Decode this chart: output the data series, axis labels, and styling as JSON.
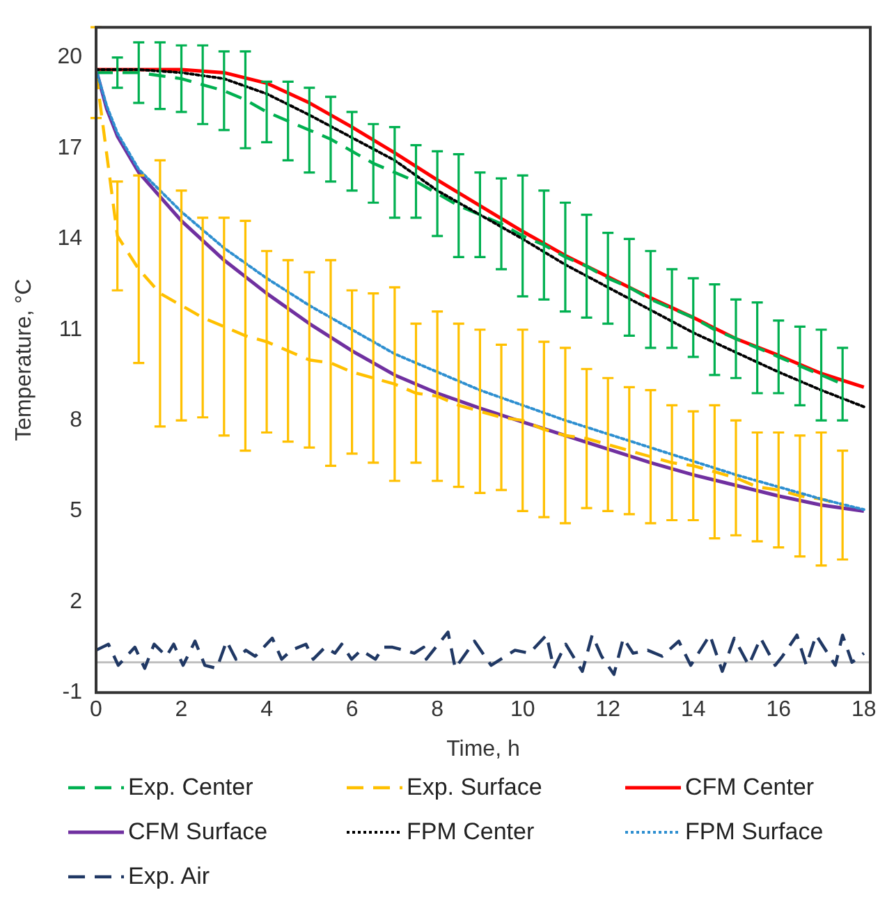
{
  "chart_data": {
    "type": "line",
    "xlabel": "Time, h",
    "ylabel": "Temperature, °C",
    "xlim": [
      0,
      18.15
    ],
    "xticks": [
      0,
      2,
      4,
      6,
      8,
      10,
      12,
      14,
      16,
      18
    ],
    "ylim": [
      -1,
      21
    ],
    "yticks": [
      -1,
      2,
      5,
      8,
      11,
      14,
      17,
      20
    ],
    "legend": "bottom",
    "marker": "none",
    "ref_lines": [
      {
        "axis": "y",
        "value": 0,
        "color": "#bfbfbf"
      }
    ],
    "series": [
      {
        "name": "Exp. Center",
        "color": "#00b050",
        "line_style": "dashed",
        "x": [
          0,
          0.5,
          1,
          1.5,
          2,
          2.5,
          3,
          3.5,
          4,
          4.5,
          5,
          5.5,
          6,
          6.5,
          7,
          7.5,
          8,
          8.5,
          9,
          9.5,
          10,
          10.5,
          11,
          11.5,
          12,
          12.5,
          13,
          13.5,
          14,
          14.5,
          15,
          15.5,
          16,
          16.5,
          17,
          17.5
        ],
        "values": [
          19.5,
          19.5,
          19.5,
          19.4,
          19.3,
          19.1,
          18.9,
          18.6,
          18.2,
          17.9,
          17.6,
          17.3,
          16.9,
          16.5,
          16.2,
          15.9,
          15.5,
          15.1,
          14.8,
          14.5,
          14.1,
          13.8,
          13.4,
          13.1,
          12.7,
          12.4,
          12.0,
          11.7,
          11.4,
          11.0,
          10.7,
          10.4,
          10.1,
          9.8,
          9.5,
          9.2
        ],
        "errors": [
          null,
          0.5,
          1.0,
          1.1,
          1.1,
          1.3,
          1.3,
          1.6,
          1.0,
          1.3,
          1.4,
          1.4,
          1.3,
          1.3,
          1.5,
          1.2,
          1.4,
          1.7,
          1.4,
          1.5,
          2.0,
          1.8,
          1.8,
          1.7,
          1.5,
          1.6,
          1.6,
          1.3,
          1.3,
          1.5,
          1.3,
          1.5,
          1.2,
          1.3,
          1.5,
          1.2
        ]
      },
      {
        "name": "Exp. Surface",
        "color": "#ffc000",
        "line_style": "dashed",
        "x": [
          0,
          0.5,
          1,
          1.5,
          2,
          2.5,
          3,
          3.5,
          4,
          4.5,
          5,
          5.5,
          6,
          6.5,
          7,
          7.5,
          8,
          8.5,
          9,
          9.5,
          10,
          10.5,
          11,
          11.5,
          12,
          12.5,
          13,
          13.5,
          14,
          14.5,
          15,
          15.5,
          16,
          16.5,
          17,
          17.5
        ],
        "values": [
          19.5,
          14.1,
          13.0,
          12.2,
          11.8,
          11.4,
          11.1,
          10.8,
          10.6,
          10.3,
          10.0,
          9.9,
          9.6,
          9.4,
          9.2,
          8.9,
          8.8,
          8.5,
          8.3,
          8.1,
          8.0,
          7.7,
          7.5,
          7.4,
          7.2,
          7.0,
          6.8,
          6.6,
          6.5,
          6.3,
          6.1,
          5.8,
          5.7,
          5.5,
          5.4,
          5.2
        ],
        "errors": [
          1.5,
          1.8,
          3.1,
          4.4,
          3.8,
          3.3,
          3.6,
          3.8,
          3.0,
          3.0,
          2.9,
          3.4,
          2.7,
          2.8,
          3.2,
          2.3,
          2.8,
          2.7,
          2.7,
          2.4,
          3.0,
          2.9,
          2.9,
          2.3,
          2.2,
          2.1,
          2.2,
          1.9,
          1.8,
          2.2,
          1.9,
          1.8,
          1.9,
          2.0,
          2.2,
          1.8
        ]
      },
      {
        "name": "CFM Center",
        "color": "#ff0000",
        "line_style": "solid",
        "x": [
          0,
          1,
          2,
          2.5,
          3,
          4,
          5,
          6,
          7,
          8,
          9,
          10,
          11,
          12,
          13,
          14,
          15,
          16,
          17,
          18
        ],
        "values": [
          19.6,
          19.6,
          19.6,
          19.55,
          19.5,
          19.15,
          18.5,
          17.7,
          16.85,
          15.95,
          15.1,
          14.25,
          13.45,
          12.75,
          12.05,
          11.4,
          10.7,
          10.15,
          9.55,
          9.1
        ]
      },
      {
        "name": "CFM Surface",
        "color": "#7030a0",
        "line_style": "solid",
        "x": [
          0,
          0.25,
          0.5,
          1,
          1.5,
          2,
          3,
          4,
          5,
          6,
          7,
          8,
          9,
          10,
          11,
          12,
          13,
          14,
          15,
          16,
          17,
          18
        ],
        "values": [
          19.6,
          18.3,
          17.4,
          16.2,
          15.4,
          14.6,
          13.3,
          12.2,
          11.2,
          10.3,
          9.5,
          8.9,
          8.4,
          7.95,
          7.5,
          7.05,
          6.6,
          6.2,
          5.85,
          5.5,
          5.2,
          5.0
        ]
      },
      {
        "name": "FPM Center",
        "color": "#000000",
        "line_style": "dotted",
        "x": [
          0,
          1,
          2,
          3,
          4,
          5,
          6,
          7,
          8,
          9,
          10,
          11,
          12,
          13,
          14,
          15,
          16,
          17,
          18
        ],
        "values": [
          19.6,
          19.6,
          19.5,
          19.3,
          18.8,
          18.1,
          17.35,
          16.6,
          15.6,
          14.8,
          14.0,
          13.15,
          12.4,
          11.65,
          10.9,
          10.25,
          9.6,
          9.0,
          8.45
        ]
      },
      {
        "name": "FPM Surface",
        "color": "#2e8fd0",
        "line_style": "dotted",
        "x": [
          0,
          0.25,
          0.5,
          1,
          1.5,
          2,
          3,
          4,
          5,
          6,
          7,
          8,
          9,
          10,
          11,
          12,
          13,
          14,
          15,
          16,
          17,
          18
        ],
        "values": [
          19.6,
          18.4,
          17.5,
          16.3,
          15.6,
          14.9,
          13.7,
          12.7,
          11.8,
          11.0,
          10.2,
          9.6,
          9.0,
          8.5,
          8.0,
          7.55,
          7.1,
          6.65,
          6.2,
          5.8,
          5.4,
          5.05
        ]
      },
      {
        "name": "Exp. Air",
        "color": "#203864",
        "line_style": "dashed",
        "x": [
          0,
          0.29,
          0.52,
          0.91,
          1.14,
          1.36,
          1.65,
          1.82,
          2.04,
          2.32,
          2.55,
          2.83,
          3.06,
          3.28,
          3.51,
          3.73,
          4.13,
          4.35,
          4.58,
          4.92,
          5.09,
          5.37,
          5.6,
          5.76,
          5.99,
          6.21,
          6.55,
          6.72,
          6.95,
          7.23,
          7.46,
          7.68,
          7.74,
          8.25,
          8.42,
          8.87,
          9.26,
          9.6,
          9.82,
          10.16,
          10.56,
          10.73,
          11.01,
          11.4,
          11.63,
          11.85,
          12.14,
          12.36,
          12.59,
          12.93,
          13.27,
          13.66,
          13.94,
          14.39,
          14.68,
          14.96,
          15.3,
          15.58,
          15.92,
          16.09,
          16.43,
          16.65,
          16.88,
          17.33,
          17.5,
          17.72,
          18
        ],
        "values": [
          0.4,
          0.6,
          -0.1,
          0.5,
          -0.2,
          0.6,
          0.2,
          0.6,
          -0.1,
          0.7,
          -0.1,
          -0.2,
          0.7,
          0.1,
          0.4,
          0.2,
          0.8,
          0.1,
          0.4,
          0.6,
          0.1,
          0.5,
          0.3,
          0.6,
          0.1,
          0.4,
          0.1,
          0.5,
          0.5,
          0.4,
          0.3,
          0.5,
          0.1,
          1.0,
          -0.2,
          0.7,
          -0.1,
          0.2,
          0.4,
          0.3,
          0.9,
          -0.2,
          0.6,
          -0.3,
          0.9,
          0.2,
          -0.4,
          0.8,
          0.3,
          0.4,
          0.2,
          0.7,
          -0.1,
          0.9,
          -0.3,
          0.8,
          -0.1,
          0.8,
          -0.1,
          0.2,
          0.9,
          -0.1,
          0.9,
          -0.1,
          0.9,
          0.0,
          0.3
        ]
      }
    ]
  }
}
